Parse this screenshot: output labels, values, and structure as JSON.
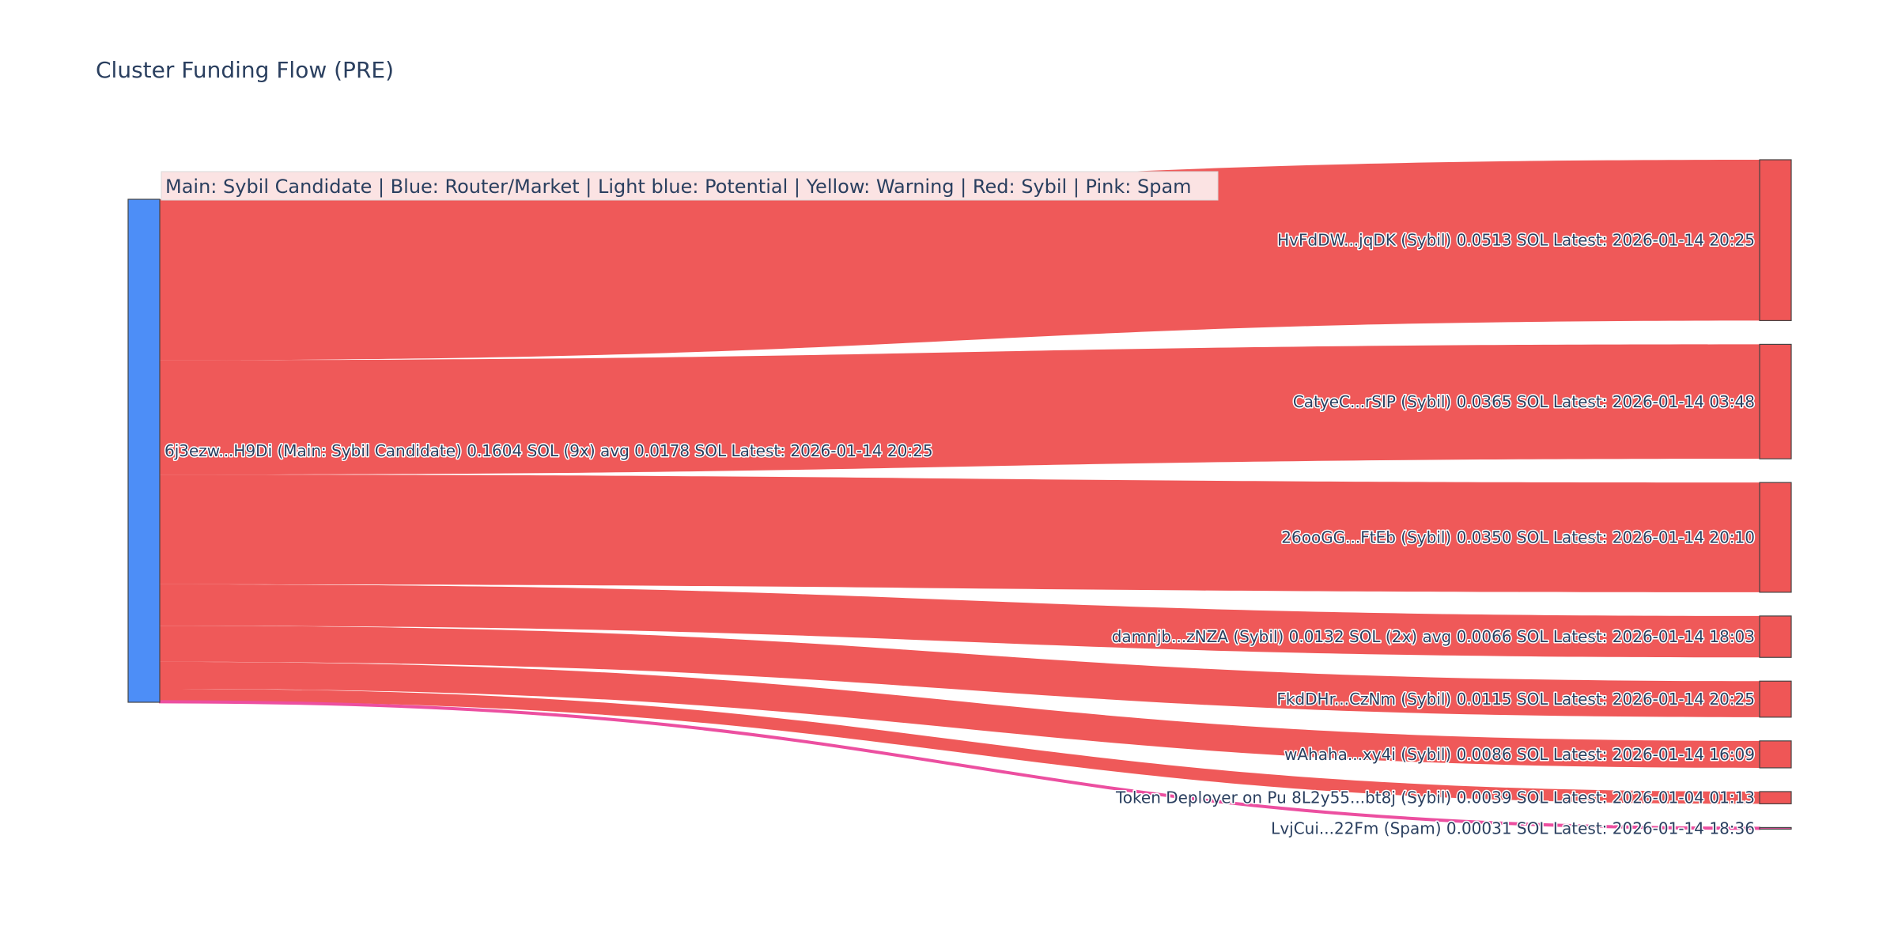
{
  "title": "Cluster Funding Flow (PRE)",
  "legend_text": "Main: Sybil Candidate  |  Blue: Router/Market | Light blue: Potential | Yellow: Warning | Red: Sybil | Pink: Spam",
  "colors": {
    "main_node": "#4d8ef7",
    "sybil": "#ef5656",
    "spam": "#ec4fa0",
    "node_border": "#444444",
    "legend_bg": "#fbe3e3"
  },
  "chart_data": {
    "type": "sankey",
    "source": {
      "label": "6j3ezw...H9Di (Main: Sybil Candidate) 0.1604 SOL (9x) avg 0.0178 SOL Latest: 2026-01-14 20:25",
      "total": 0.1604
    },
    "targets": [
      {
        "label": "HvFdDW...jqDK (Sybil) 0.0513 SOL Latest: 2026-01-14 20:25",
        "value": 0.0513,
        "category": "sybil"
      },
      {
        "label": "CatyeC...rSIP (Sybil) 0.0365 SOL Latest: 2026-01-14 03:48",
        "value": 0.0365,
        "category": "sybil"
      },
      {
        "label": "26ooGG...FtEb (Sybil) 0.0350 SOL Latest: 2026-01-14 20:10",
        "value": 0.035,
        "category": "sybil"
      },
      {
        "label": "damnjb...zNZA (Sybil) 0.0132 SOL (2x) avg 0.0066 SOL Latest: 2026-01-14 18:03",
        "value": 0.0132,
        "category": "sybil"
      },
      {
        "label": "FkdDHr...CzNm (Sybil) 0.0115 SOL Latest: 2026-01-14 20:25",
        "value": 0.0115,
        "category": "sybil"
      },
      {
        "label": "wAhaha...xy4i (Sybil) 0.0086 SOL Latest: 2026-01-14 16:09",
        "value": 0.0086,
        "category": "sybil"
      },
      {
        "label": "Token Deployer on Pu 8L2y55...bt8j (Sybil) 0.0039 SOL Latest: 2026-01-04 01:13",
        "value": 0.0039,
        "category": "sybil"
      },
      {
        "label": "LvjCui...22Fm (Spam) 0.00031 SOL Latest: 2026-01-14 18:36",
        "value": 0.00031,
        "category": "spam"
      }
    ]
  }
}
